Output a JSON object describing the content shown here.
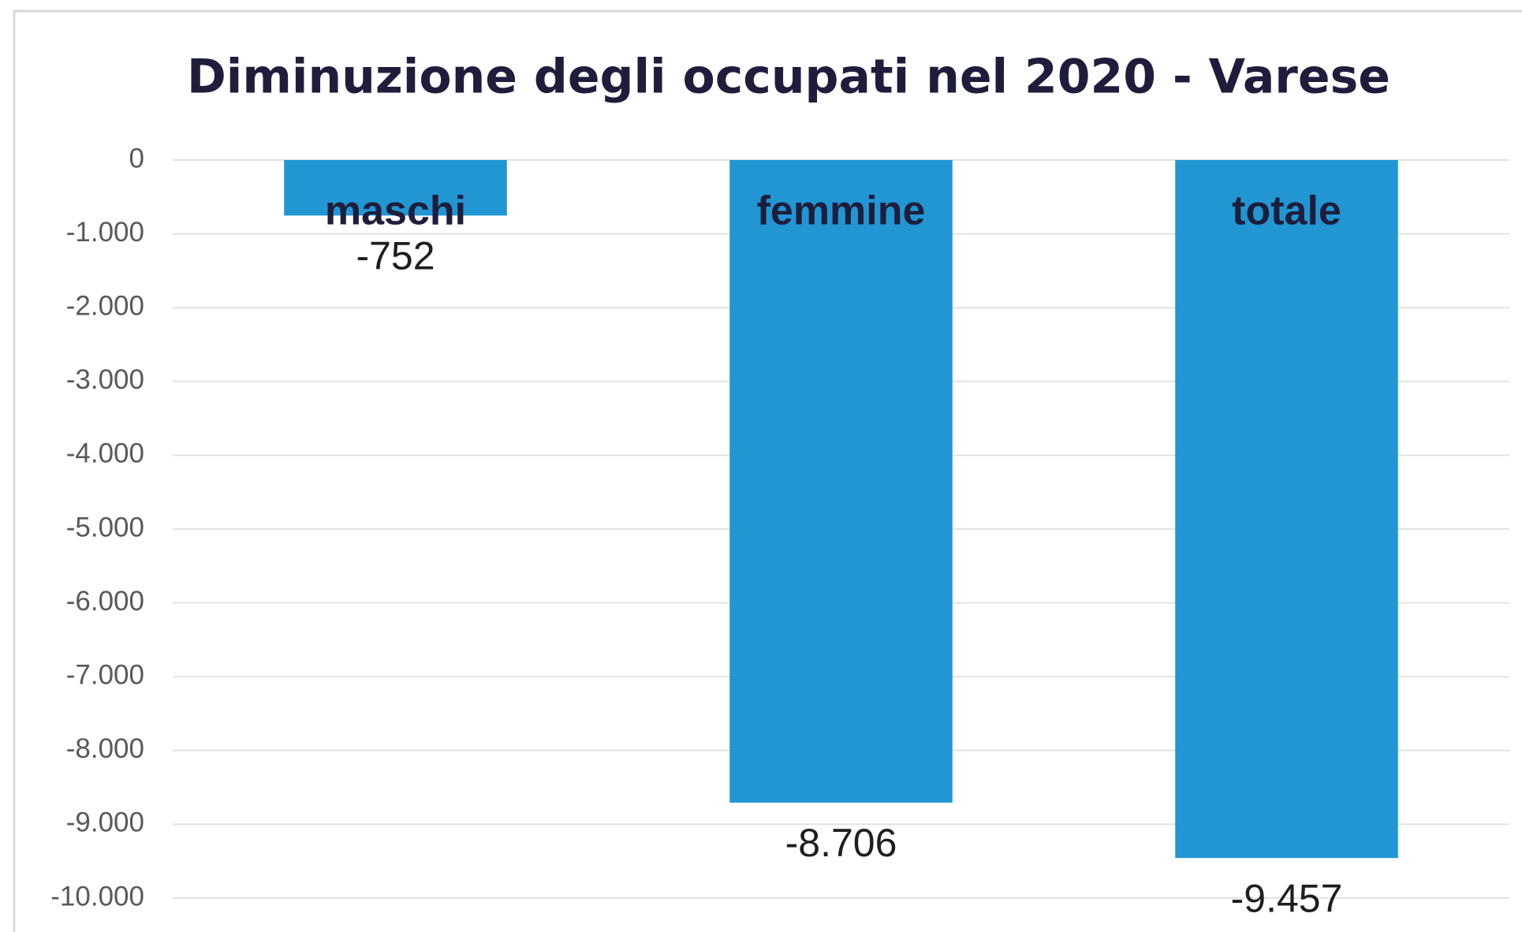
{
  "chart_data": {
    "type": "bar",
    "title": "Diminuzione degli occupati nel 2020 - Varese",
    "categories": [
      "maschi",
      "femmine",
      "totale"
    ],
    "values": [
      -752,
      -8706,
      -9457
    ],
    "value_labels": [
      "-752",
      "-8.706",
      "-9.457"
    ],
    "color": "#2196d3",
    "ylim": [
      -10000,
      0
    ],
    "yticks": [
      0,
      {
        "value": -1000,
        "label": "-1.000"
      },
      {
        "value": -2000,
        "label": "-2.000"
      },
      {
        "value": -3000,
        "label": "-3.000"
      },
      {
        "value": -4000,
        "label": "-4.000"
      },
      {
        "value": -5000,
        "label": "-5.000"
      },
      {
        "value": -6000,
        "label": "-6.000"
      },
      {
        "value": -7000,
        "label": "-7.000"
      },
      {
        "value": -8000,
        "label": "-8.000"
      },
      {
        "value": -9000,
        "label": "-9.000"
      },
      {
        "value": -10000,
        "label": "-10.000"
      }
    ],
    "grid": true
  }
}
